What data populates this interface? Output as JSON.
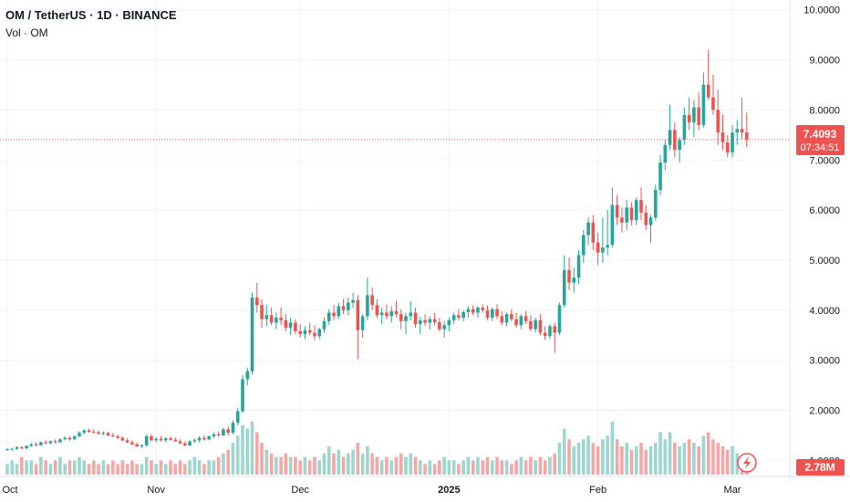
{
  "header": {
    "title": "OM / TetherUS · 1D · BINANCE",
    "volume_label": "Vol · OM"
  },
  "price_tag": {
    "value": "7.4093",
    "countdown": "07:34:51",
    "color": "#ef5350"
  },
  "volume_tag": {
    "value": "2.78M",
    "color": "#ef5350"
  },
  "colors": {
    "up": "#26a69a",
    "down": "#ef5350",
    "up_vol": "#9dd5cf",
    "down_vol": "#f5a6a5",
    "grid": "#f0f3fa"
  },
  "chart_data": {
    "type": "candlestick",
    "title": "OM / TetherUS · 1D · BINANCE",
    "ylim": [
      0.35,
      10.05
    ],
    "y_ticks": [
      "1.0000",
      "2.0000",
      "3.0000",
      "4.0000",
      "5.0000",
      "6.0000",
      "7.0000",
      "8.0000",
      "9.0000",
      "10.0000"
    ],
    "x_ticks": [
      {
        "label": "Oct",
        "day": 0,
        "bold": false
      },
      {
        "label": "Nov",
        "day": 31,
        "bold": false
      },
      {
        "label": "Dec",
        "day": 61,
        "bold": false
      },
      {
        "label": "2025",
        "day": 92,
        "bold": true
      },
      {
        "label": "Feb",
        "day": 123,
        "bold": false
      },
      {
        "label": "Mar",
        "day": 151,
        "bold": false
      }
    ],
    "last_price": 7.4093,
    "volume_ylim": [
      0,
      16
    ],
    "candles": [
      [
        0,
        1.21,
        1.24,
        1.19,
        1.22,
        3
      ],
      [
        1,
        1.22,
        1.25,
        1.2,
        1.23,
        4
      ],
      [
        2,
        1.23,
        1.28,
        1.21,
        1.26,
        3
      ],
      [
        3,
        1.26,
        1.29,
        1.23,
        1.24,
        5
      ],
      [
        4,
        1.24,
        1.3,
        1.22,
        1.29,
        4
      ],
      [
        5,
        1.29,
        1.35,
        1.27,
        1.32,
        4
      ],
      [
        6,
        1.32,
        1.36,
        1.28,
        1.3,
        3
      ],
      [
        7,
        1.3,
        1.38,
        1.29,
        1.36,
        5
      ],
      [
        8,
        1.36,
        1.4,
        1.32,
        1.34,
        4
      ],
      [
        9,
        1.34,
        1.4,
        1.32,
        1.38,
        3
      ],
      [
        10,
        1.38,
        1.42,
        1.34,
        1.36,
        4
      ],
      [
        11,
        1.36,
        1.44,
        1.35,
        1.42,
        5
      ],
      [
        12,
        1.42,
        1.48,
        1.4,
        1.45,
        3
      ],
      [
        13,
        1.45,
        1.48,
        1.4,
        1.42,
        4
      ],
      [
        14,
        1.42,
        1.5,
        1.41,
        1.48,
        4
      ],
      [
        15,
        1.48,
        1.58,
        1.46,
        1.55,
        5
      ],
      [
        16,
        1.55,
        1.62,
        1.52,
        1.6,
        4
      ],
      [
        17,
        1.6,
        1.63,
        1.55,
        1.57,
        3
      ],
      [
        18,
        1.57,
        1.62,
        1.54,
        1.56,
        4
      ],
      [
        19,
        1.56,
        1.6,
        1.52,
        1.53,
        3
      ],
      [
        20,
        1.53,
        1.58,
        1.5,
        1.55,
        4
      ],
      [
        21,
        1.55,
        1.57,
        1.48,
        1.5,
        3
      ],
      [
        22,
        1.5,
        1.55,
        1.46,
        1.48,
        4
      ],
      [
        23,
        1.48,
        1.52,
        1.42,
        1.45,
        3
      ],
      [
        24,
        1.45,
        1.48,
        1.38,
        1.4,
        4
      ],
      [
        25,
        1.4,
        1.44,
        1.34,
        1.36,
        3
      ],
      [
        26,
        1.36,
        1.4,
        1.3,
        1.32,
        4
      ],
      [
        27,
        1.32,
        1.36,
        1.26,
        1.28,
        3
      ],
      [
        28,
        1.28,
        1.32,
        1.24,
        1.3,
        3
      ],
      [
        29,
        1.3,
        1.52,
        1.28,
        1.48,
        5
      ],
      [
        30,
        1.48,
        1.52,
        1.38,
        1.4,
        4
      ],
      [
        31,
        1.4,
        1.46,
        1.36,
        1.43,
        3
      ],
      [
        32,
        1.43,
        1.48,
        1.38,
        1.4,
        4
      ],
      [
        33,
        1.4,
        1.46,
        1.36,
        1.44,
        3
      ],
      [
        34,
        1.44,
        1.48,
        1.39,
        1.41,
        4
      ],
      [
        35,
        1.41,
        1.46,
        1.37,
        1.38,
        3
      ],
      [
        36,
        1.38,
        1.42,
        1.32,
        1.34,
        4
      ],
      [
        37,
        1.34,
        1.38,
        1.28,
        1.3,
        3
      ],
      [
        38,
        1.3,
        1.4,
        1.28,
        1.38,
        4
      ],
      [
        39,
        1.38,
        1.44,
        1.34,
        1.4,
        5
      ],
      [
        40,
        1.4,
        1.48,
        1.36,
        1.45,
        4
      ],
      [
        41,
        1.45,
        1.5,
        1.4,
        1.42,
        3
      ],
      [
        42,
        1.42,
        1.5,
        1.4,
        1.48,
        4
      ],
      [
        43,
        1.48,
        1.56,
        1.44,
        1.52,
        4
      ],
      [
        44,
        1.52,
        1.58,
        1.46,
        1.5,
        5
      ],
      [
        45,
        1.5,
        1.65,
        1.48,
        1.62,
        6
      ],
      [
        46,
        1.62,
        1.68,
        1.5,
        1.55,
        7
      ],
      [
        47,
        1.55,
        1.8,
        1.52,
        1.75,
        9
      ],
      [
        48,
        1.75,
        2.05,
        1.7,
        1.98,
        11
      ],
      [
        49,
        1.98,
        2.7,
        1.95,
        2.62,
        14
      ],
      [
        50,
        2.62,
        2.85,
        2.5,
        2.78,
        13
      ],
      [
        51,
        2.78,
        4.35,
        2.72,
        4.25,
        15
      ],
      [
        52,
        4.25,
        4.55,
        3.95,
        4.1,
        12
      ],
      [
        53,
        4.1,
        4.22,
        3.65,
        3.82,
        9
      ],
      [
        54,
        3.82,
        4.1,
        3.68,
        3.9,
        7
      ],
      [
        55,
        3.9,
        4.05,
        3.7,
        3.75,
        6
      ],
      [
        56,
        3.75,
        3.95,
        3.62,
        3.85,
        5
      ],
      [
        57,
        3.85,
        4.05,
        3.7,
        3.8,
        5
      ],
      [
        58,
        3.8,
        3.92,
        3.58,
        3.65,
        6
      ],
      [
        59,
        3.65,
        3.85,
        3.5,
        3.75,
        5
      ],
      [
        60,
        3.75,
        3.82,
        3.52,
        3.58,
        5
      ],
      [
        61,
        3.58,
        3.72,
        3.45,
        3.52,
        4
      ],
      [
        62,
        3.52,
        3.68,
        3.42,
        3.6,
        5
      ],
      [
        63,
        3.6,
        3.75,
        3.5,
        3.55,
        4
      ],
      [
        64,
        3.55,
        3.7,
        3.4,
        3.48,
        5
      ],
      [
        65,
        3.48,
        3.65,
        3.42,
        3.62,
        4
      ],
      [
        66,
        3.62,
        3.85,
        3.55,
        3.78,
        6
      ],
      [
        67,
        3.78,
        4.02,
        3.7,
        3.95,
        8
      ],
      [
        68,
        3.95,
        4.1,
        3.8,
        3.88,
        6
      ],
      [
        69,
        3.88,
        4.15,
        3.82,
        4.08,
        7
      ],
      [
        70,
        4.08,
        4.22,
        3.92,
        4.0,
        5
      ],
      [
        71,
        4.0,
        4.25,
        3.9,
        4.15,
        6
      ],
      [
        72,
        4.15,
        4.35,
        4.05,
        4.2,
        7
      ],
      [
        73,
        4.2,
        4.3,
        3.02,
        3.6,
        9
      ],
      [
        74,
        3.6,
        3.92,
        3.45,
        3.88,
        6
      ],
      [
        75,
        3.88,
        4.65,
        3.8,
        4.3,
        8
      ],
      [
        76,
        4.3,
        4.45,
        4.0,
        4.1,
        6
      ],
      [
        77,
        4.1,
        4.22,
        3.85,
        3.9,
        5
      ],
      [
        78,
        3.9,
        4.05,
        3.72,
        3.95,
        4
      ],
      [
        79,
        3.95,
        4.12,
        3.82,
        3.88,
        5
      ],
      [
        80,
        3.88,
        4.08,
        3.75,
        3.98,
        4
      ],
      [
        81,
        3.98,
        4.18,
        3.86,
        3.92,
        5
      ],
      [
        82,
        3.92,
        4.02,
        3.62,
        3.78,
        6
      ],
      [
        83,
        3.78,
        3.95,
        3.52,
        3.88,
        5
      ],
      [
        84,
        3.88,
        4.18,
        3.8,
        3.95,
        6
      ],
      [
        85,
        3.95,
        4.05,
        3.65,
        3.72,
        5
      ],
      [
        86,
        3.72,
        3.86,
        3.52,
        3.8,
        4
      ],
      [
        87,
        3.8,
        3.92,
        3.68,
        3.75,
        3
      ],
      [
        88,
        3.75,
        3.88,
        3.62,
        3.82,
        4
      ],
      [
        89,
        3.82,
        3.95,
        3.7,
        3.76,
        3
      ],
      [
        90,
        3.76,
        3.85,
        3.58,
        3.62,
        4
      ],
      [
        91,
        3.62,
        3.78,
        3.45,
        3.7,
        5
      ],
      [
        92,
        3.7,
        3.85,
        3.58,
        3.8,
        4
      ],
      [
        93,
        3.8,
        3.95,
        3.72,
        3.9,
        4
      ],
      [
        94,
        3.9,
        4.02,
        3.8,
        3.85,
        3
      ],
      [
        95,
        3.85,
        4.0,
        3.78,
        3.96,
        4
      ],
      [
        96,
        3.96,
        4.08,
        3.85,
        4.02,
        5
      ],
      [
        97,
        4.02,
        4.1,
        3.9,
        3.95,
        4
      ],
      [
        98,
        3.95,
        4.08,
        3.85,
        4.05,
        5
      ],
      [
        99,
        4.05,
        4.12,
        3.95,
        4.0,
        4
      ],
      [
        100,
        4.0,
        4.1,
        3.8,
        3.85,
        5
      ],
      [
        101,
        3.85,
        4.05,
        3.78,
        4.02,
        4
      ],
      [
        102,
        4.02,
        4.12,
        3.82,
        3.88,
        5
      ],
      [
        103,
        3.88,
        3.98,
        3.7,
        3.75,
        4
      ],
      [
        104,
        3.75,
        3.95,
        3.68,
        3.92,
        4
      ],
      [
        105,
        3.92,
        4.02,
        3.78,
        3.82,
        3
      ],
      [
        106,
        3.82,
        3.95,
        3.65,
        3.7,
        4
      ],
      [
        107,
        3.7,
        3.92,
        3.62,
        3.88,
        5
      ],
      [
        108,
        3.88,
        3.98,
        3.72,
        3.78,
        4
      ],
      [
        109,
        3.78,
        3.9,
        3.58,
        3.62,
        5
      ],
      [
        110,
        3.62,
        3.85,
        3.55,
        3.8,
        4
      ],
      [
        111,
        3.8,
        3.92,
        3.5,
        3.55,
        5
      ],
      [
        112,
        3.55,
        3.68,
        3.4,
        3.48,
        4
      ],
      [
        113,
        3.48,
        3.72,
        3.42,
        3.68,
        5
      ],
      [
        114,
        3.68,
        3.75,
        3.15,
        3.55,
        6
      ],
      [
        115,
        3.55,
        4.15,
        3.5,
        4.1,
        9
      ],
      [
        116,
        4.1,
        5.1,
        4.05,
        4.8,
        13
      ],
      [
        117,
        4.8,
        5.05,
        4.4,
        4.55,
        10
      ],
      [
        118,
        4.55,
        4.85,
        4.35,
        4.65,
        8
      ],
      [
        119,
        4.65,
        5.2,
        4.52,
        5.1,
        9
      ],
      [
        120,
        5.1,
        5.6,
        4.95,
        5.5,
        10
      ],
      [
        121,
        5.5,
        5.85,
        5.3,
        5.75,
        11
      ],
      [
        122,
        5.75,
        5.9,
        5.2,
        5.35,
        9
      ],
      [
        123,
        5.35,
        5.55,
        4.9,
        5.15,
        8
      ],
      [
        124,
        5.15,
        5.85,
        4.95,
        5.25,
        10
      ],
      [
        125,
        5.25,
        6.0,
        5.1,
        5.3,
        11
      ],
      [
        126,
        5.3,
        6.45,
        5.25,
        6.1,
        15
      ],
      [
        127,
        6.1,
        6.3,
        5.7,
        5.85,
        10
      ],
      [
        128,
        5.85,
        6.05,
        5.55,
        5.75,
        8
      ],
      [
        129,
        5.75,
        6.2,
        5.6,
        6.05,
        9
      ],
      [
        130,
        6.05,
        6.15,
        5.7,
        5.8,
        7
      ],
      [
        131,
        5.8,
        6.25,
        5.7,
        6.2,
        8
      ],
      [
        132,
        6.2,
        6.45,
        5.8,
        5.95,
        9
      ],
      [
        133,
        5.95,
        6.1,
        5.6,
        5.7,
        7
      ],
      [
        134,
        5.7,
        5.9,
        5.35,
        5.85,
        8
      ],
      [
        135,
        5.85,
        6.5,
        5.8,
        6.4,
        9
      ],
      [
        136,
        6.4,
        7.1,
        6.3,
        6.95,
        12
      ],
      [
        137,
        6.95,
        7.4,
        6.8,
        7.3,
        10
      ],
      [
        138,
        7.3,
        8.1,
        7.2,
        7.6,
        12
      ],
      [
        139,
        7.6,
        7.75,
        7.05,
        7.2,
        9
      ],
      [
        140,
        7.2,
        7.45,
        6.95,
        7.4,
        8
      ],
      [
        141,
        7.4,
        8.05,
        7.3,
        7.9,
        9
      ],
      [
        142,
        7.9,
        8.25,
        7.6,
        7.75,
        10
      ],
      [
        143,
        7.75,
        8.2,
        7.45,
        8.05,
        9
      ],
      [
        144,
        8.05,
        8.35,
        7.6,
        7.7,
        8
      ],
      [
        145,
        7.7,
        8.75,
        7.65,
        8.5,
        11
      ],
      [
        146,
        8.5,
        9.2,
        8.2,
        8.25,
        12
      ],
      [
        147,
        8.25,
        8.7,
        7.9,
        8.0,
        10
      ],
      [
        148,
        8.0,
        8.4,
        7.3,
        7.55,
        9
      ],
      [
        149,
        7.55,
        7.9,
        7.2,
        7.35,
        8
      ],
      [
        150,
        7.35,
        7.5,
        7.05,
        7.15,
        7
      ],
      [
        151,
        7.15,
        7.7,
        7.05,
        7.55,
        8
      ],
      [
        152,
        7.55,
        7.8,
        7.3,
        7.62,
        6
      ],
      [
        153,
        7.62,
        8.25,
        7.4,
        7.55,
        5
      ],
      [
        154,
        7.55,
        7.95,
        7.25,
        7.41,
        3
      ]
    ]
  }
}
